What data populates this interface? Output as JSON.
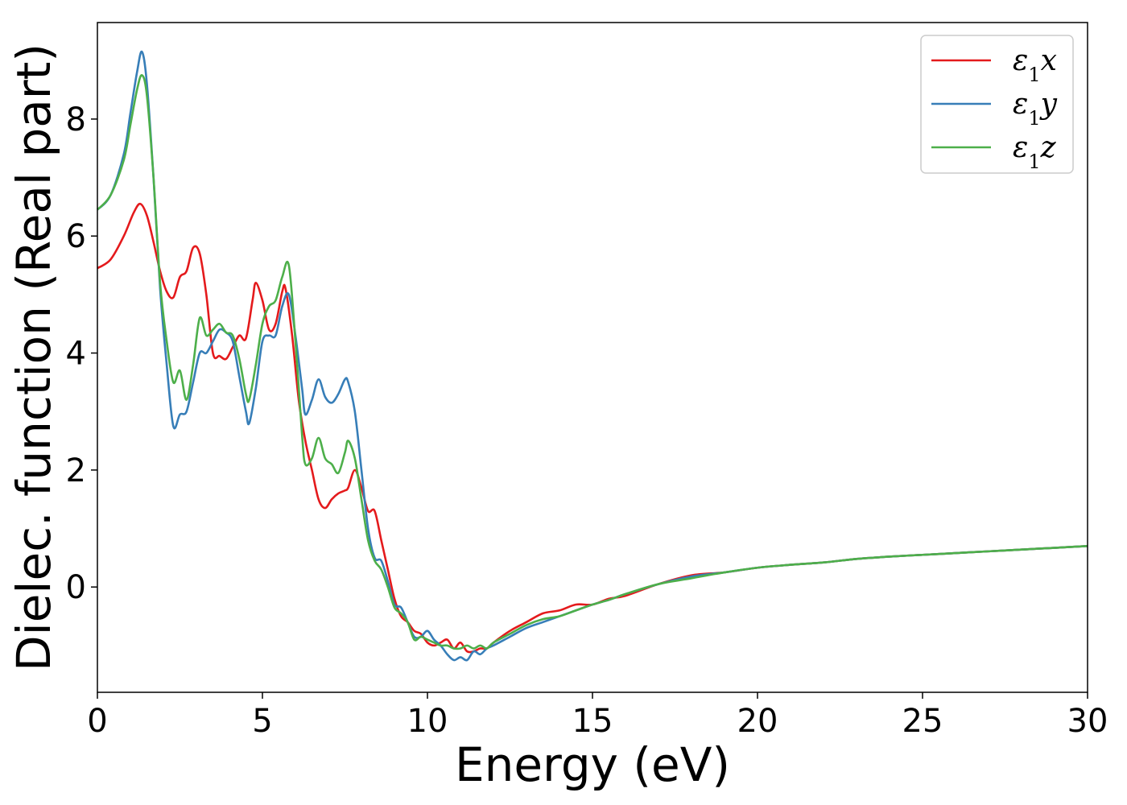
{
  "chart_data": {
    "type": "line",
    "xlabel": "Energy (eV)",
    "ylabel": "Dielec. function (Real part)",
    "xlim": [
      0,
      30
    ],
    "ylim": [
      -1.8,
      9.65
    ],
    "xticks": [
      0,
      5,
      10,
      15,
      20,
      25,
      30
    ],
    "yticks": [
      0,
      2,
      4,
      6,
      8
    ],
    "grid": false,
    "legend_position": "top-right",
    "series": [
      {
        "name": "ε1x",
        "label_base": "ε",
        "label_sub": "1",
        "label_suffix": "x",
        "color": "#e41a1c",
        "x": [
          0,
          0.4,
          0.8,
          1.1,
          1.3,
          1.5,
          1.7,
          1.9,
          2.1,
          2.3,
          2.5,
          2.7,
          2.9,
          3.1,
          3.3,
          3.5,
          3.7,
          3.9,
          4.1,
          4.3,
          4.5,
          4.7,
          4.8,
          5.0,
          5.2,
          5.4,
          5.6,
          5.7,
          5.9,
          6.1,
          6.3,
          6.5,
          6.7,
          6.9,
          7.1,
          7.3,
          7.5,
          7.6,
          7.8,
          8.0,
          8.2,
          8.4,
          8.6,
          8.8,
          9.0,
          9.2,
          9.4,
          9.6,
          9.8,
          10.0,
          10.2,
          10.4,
          10.6,
          10.8,
          11.0,
          11.2,
          11.4,
          11.6,
          11.8,
          12.0,
          12.5,
          13.0,
          13.5,
          14.0,
          14.5,
          15.0,
          15.5,
          16.0,
          17.0,
          18.0,
          19.0,
          20.0,
          21.0,
          22.0,
          23.0,
          24.0,
          25.0,
          26.0,
          27.0,
          28.0,
          29.0,
          30.0
        ],
        "y": [
          5.45,
          5.6,
          6.0,
          6.4,
          6.55,
          6.35,
          5.9,
          5.4,
          5.05,
          4.95,
          5.3,
          5.4,
          5.8,
          5.7,
          5.0,
          4.0,
          3.95,
          3.9,
          4.1,
          4.3,
          4.25,
          4.9,
          5.2,
          4.9,
          4.4,
          4.5,
          5.05,
          5.1,
          4.3,
          3.2,
          2.5,
          2.0,
          1.5,
          1.35,
          1.5,
          1.6,
          1.65,
          1.7,
          2.0,
          1.7,
          1.3,
          1.3,
          0.8,
          0.3,
          -0.2,
          -0.5,
          -0.6,
          -0.75,
          -0.8,
          -0.95,
          -1.0,
          -0.95,
          -0.9,
          -1.05,
          -0.95,
          -1.1,
          -1.1,
          -1.05,
          -1.05,
          -0.95,
          -0.75,
          -0.6,
          -0.45,
          -0.4,
          -0.3,
          -0.3,
          -0.2,
          -0.15,
          0.05,
          0.2,
          0.25,
          0.33,
          0.38,
          0.42,
          0.48,
          0.52,
          0.55,
          0.58,
          0.61,
          0.64,
          0.67,
          0.7
        ]
      },
      {
        "name": "ε1y",
        "label_base": "ε",
        "label_sub": "1",
        "label_suffix": "y",
        "color": "#377eb8",
        "x": [
          0,
          0.4,
          0.8,
          1.0,
          1.2,
          1.35,
          1.5,
          1.7,
          1.9,
          2.1,
          2.3,
          2.5,
          2.7,
          2.9,
          3.1,
          3.3,
          3.5,
          3.7,
          3.9,
          4.1,
          4.3,
          4.5,
          4.6,
          4.8,
          5.0,
          5.2,
          5.4,
          5.6,
          5.8,
          6.0,
          6.2,
          6.3,
          6.5,
          6.7,
          6.9,
          7.1,
          7.3,
          7.5,
          7.6,
          7.8,
          8.0,
          8.2,
          8.4,
          8.6,
          8.8,
          9.0,
          9.2,
          9.4,
          9.6,
          9.8,
          10.0,
          10.2,
          10.4,
          10.6,
          10.8,
          11.0,
          11.2,
          11.4,
          11.6,
          11.8,
          12.0,
          12.5,
          13.0,
          13.5,
          14.0,
          14.5,
          15.0,
          15.5,
          16.0,
          17.0,
          18.0,
          19.0,
          20.0,
          21.0,
          22.0,
          23.0,
          24.0,
          25.0,
          26.0,
          27.0,
          28.0,
          29.0,
          30.0
        ],
        "y": [
          6.45,
          6.7,
          7.4,
          8.1,
          8.8,
          9.15,
          8.6,
          7.0,
          5.1,
          3.8,
          2.75,
          2.95,
          3.0,
          3.5,
          4.0,
          4.0,
          4.2,
          4.4,
          4.35,
          4.2,
          3.6,
          3.0,
          2.8,
          3.4,
          4.2,
          4.3,
          4.3,
          4.8,
          5.0,
          4.3,
          3.4,
          2.95,
          3.2,
          3.55,
          3.25,
          3.15,
          3.3,
          3.55,
          3.5,
          3.0,
          2.0,
          1.0,
          0.5,
          0.45,
          0.1,
          -0.3,
          -0.35,
          -0.6,
          -0.85,
          -0.85,
          -0.75,
          -0.9,
          -1.0,
          -1.15,
          -1.25,
          -1.2,
          -1.25,
          -1.1,
          -1.15,
          -1.05,
          -1.0,
          -0.85,
          -0.7,
          -0.6,
          -0.5,
          -0.4,
          -0.3,
          -0.22,
          -0.12,
          0.05,
          0.18,
          0.25,
          0.33,
          0.38,
          0.42,
          0.48,
          0.52,
          0.55,
          0.58,
          0.61,
          0.64,
          0.67,
          0.7
        ]
      },
      {
        "name": "ε1z",
        "label_base": "ε",
        "label_sub": "1",
        "label_suffix": "z",
        "color": "#4daf4a",
        "x": [
          0,
          0.4,
          0.8,
          1.0,
          1.2,
          1.35,
          1.5,
          1.7,
          1.9,
          2.1,
          2.3,
          2.5,
          2.7,
          2.9,
          3.1,
          3.3,
          3.5,
          3.7,
          3.9,
          4.1,
          4.3,
          4.5,
          4.6,
          4.8,
          5.0,
          5.2,
          5.4,
          5.6,
          5.8,
          6.0,
          6.2,
          6.3,
          6.5,
          6.7,
          6.9,
          7.1,
          7.3,
          7.5,
          7.6,
          7.8,
          8.0,
          8.2,
          8.4,
          8.6,
          8.8,
          9.0,
          9.2,
          9.4,
          9.6,
          9.8,
          10.0,
          10.2,
          10.4,
          10.6,
          10.8,
          11.0,
          11.2,
          11.4,
          11.6,
          11.8,
          12.0,
          12.5,
          13.0,
          13.5,
          14.0,
          14.5,
          15.0,
          15.5,
          16.0,
          17.0,
          18.0,
          19.0,
          20.0,
          21.0,
          22.0,
          23.0,
          24.0,
          25.0,
          26.0,
          27.0,
          28.0,
          29.0,
          30.0
        ],
        "y": [
          6.45,
          6.7,
          7.3,
          7.9,
          8.5,
          8.75,
          8.4,
          7.0,
          5.2,
          4.2,
          3.5,
          3.7,
          3.2,
          3.8,
          4.6,
          4.3,
          4.4,
          4.5,
          4.35,
          4.3,
          3.9,
          3.3,
          3.2,
          3.8,
          4.5,
          4.8,
          4.9,
          5.3,
          5.5,
          4.2,
          2.6,
          2.1,
          2.2,
          2.55,
          2.2,
          2.1,
          1.95,
          2.3,
          2.5,
          2.2,
          1.5,
          0.8,
          0.45,
          0.3,
          0.0,
          -0.35,
          -0.45,
          -0.6,
          -0.9,
          -0.85,
          -0.9,
          -0.95,
          -1.0,
          -1.0,
          -1.05,
          -1.05,
          -1.0,
          -1.05,
          -1.0,
          -1.05,
          -0.95,
          -0.8,
          -0.65,
          -0.55,
          -0.5,
          -0.4,
          -0.3,
          -0.22,
          -0.12,
          0.05,
          0.15,
          0.25,
          0.33,
          0.38,
          0.42,
          0.48,
          0.52,
          0.55,
          0.58,
          0.61,
          0.64,
          0.67,
          0.7
        ]
      }
    ]
  }
}
